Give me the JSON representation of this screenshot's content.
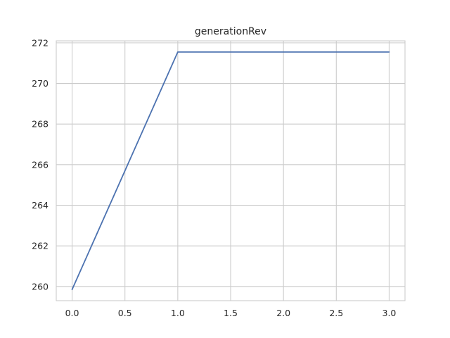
{
  "chart_data": {
    "type": "line",
    "title": "generationRev",
    "xlabel": "",
    "ylabel": "",
    "x": [
      0,
      1,
      2,
      3
    ],
    "series": [
      {
        "values": [
          259.85,
          271.55,
          271.55,
          271.55
        ],
        "color": "#4c72b0"
      }
    ],
    "xlim": [
      -0.15,
      3.15
    ],
    "ylim": [
      259.3,
      272.1
    ],
    "xticks": [
      0.0,
      0.5,
      1.0,
      1.5,
      2.0,
      2.5,
      3.0
    ],
    "xtick_labels": [
      "0.0",
      "0.5",
      "1.0",
      "1.5",
      "2.0",
      "2.5",
      "3.0"
    ],
    "yticks": [
      260,
      262,
      264,
      266,
      268,
      270,
      272
    ],
    "ytick_labels": [
      "260",
      "262",
      "264",
      "266",
      "268",
      "270",
      "272"
    ],
    "grid": true,
    "legend": "none"
  }
}
